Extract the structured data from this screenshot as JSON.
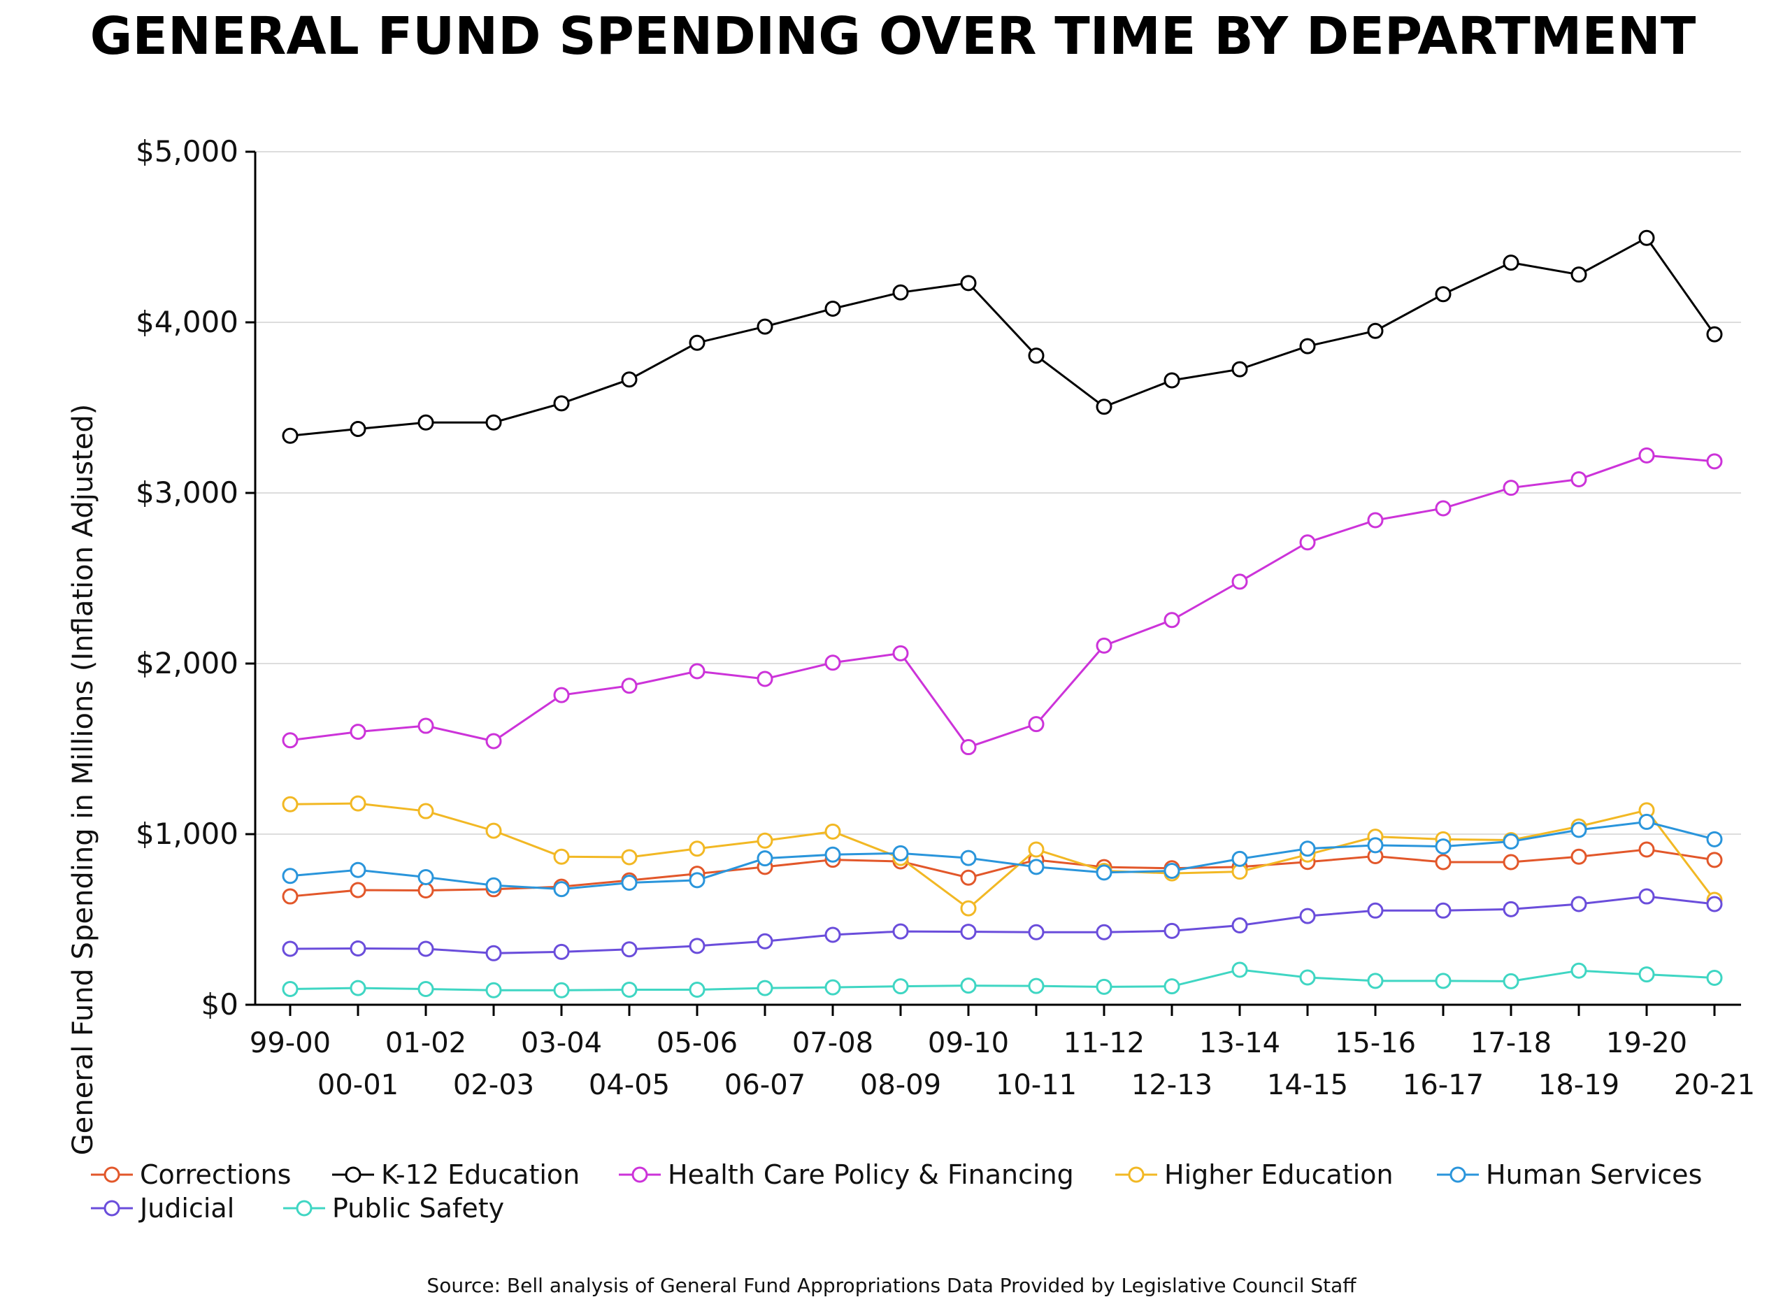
{
  "chart_data": {
    "type": "line",
    "title": "GENERAL FUND SPENDING OVER TIME BY DEPARTMENT",
    "ylabel": "General Fund Spending in Millions (Inflation Adjusted)",
    "xlabel": "",
    "ylim": [
      0,
      5000
    ],
    "yticks": [
      0,
      1000,
      2000,
      3000,
      4000,
      5000
    ],
    "ytick_labels": [
      "$0",
      "$1,000",
      "$2,000",
      "$3,000",
      "$4,000",
      "$5,000"
    ],
    "grid": "horizontal",
    "legend": "bottom",
    "categories": [
      "99-00",
      "00-01",
      "01-02",
      "02-03",
      "03-04",
      "04-05",
      "05-06",
      "06-07",
      "07-08",
      "08-09",
      "09-10",
      "10-11",
      "11-12",
      "12-13",
      "13-14",
      "14-15",
      "15-16",
      "16-17",
      "17-18",
      "18-19",
      "19-20",
      "20-21"
    ],
    "series": [
      {
        "name": "Corrections",
        "color": "#e2572a",
        "values": [
          635,
          672,
          670,
          677,
          692,
          729,
          768,
          808,
          850,
          840,
          745,
          849,
          807,
          800,
          808,
          837,
          871,
          836,
          836,
          868,
          910,
          849
        ]
      },
      {
        "name": "K-12 Education",
        "color": "#000000",
        "values": [
          3335,
          3375,
          3413,
          3413,
          3525,
          3665,
          3880,
          3975,
          4080,
          4175,
          4230,
          3805,
          3505,
          3660,
          3725,
          3860,
          3950,
          4165,
          4350,
          4280,
          4495,
          3930
        ]
      },
      {
        "name": "Health Care Policy & Financing",
        "color": "#cc33d9",
        "values": [
          1550,
          1600,
          1635,
          1545,
          1815,
          1870,
          1955,
          1910,
          2005,
          2060,
          1510,
          1645,
          2105,
          2255,
          2480,
          2710,
          2840,
          2910,
          3030,
          3080,
          3220,
          3185
        ]
      },
      {
        "name": "Higher Education",
        "color": "#f2b824",
        "values": [
          1175,
          1180,
          1135,
          1020,
          868,
          865,
          915,
          962,
          1015,
          860,
          565,
          910,
          785,
          770,
          780,
          880,
          985,
          970,
          965,
          1045,
          1140,
          615
        ]
      },
      {
        "name": "Human Services",
        "color": "#2a95db",
        "values": [
          755,
          790,
          748,
          700,
          678,
          715,
          730,
          858,
          880,
          888,
          860,
          808,
          775,
          785,
          855,
          915,
          935,
          928,
          957,
          1025,
          1072,
          970
        ]
      },
      {
        "name": "Judicial",
        "color": "#6a4ddb",
        "values": [
          328,
          330,
          328,
          302,
          310,
          325,
          345,
          372,
          410,
          430,
          428,
          425,
          425,
          433,
          465,
          520,
          552,
          552,
          560,
          590,
          635,
          590
        ]
      },
      {
        "name": "Public Safety",
        "color": "#3fd6c3",
        "values": [
          92,
          98,
          92,
          85,
          85,
          88,
          88,
          98,
          102,
          108,
          112,
          110,
          105,
          108,
          205,
          160,
          140,
          140,
          138,
          200,
          178,
          158
        ]
      }
    ],
    "source": "Source: Bell analysis of General Fund Appropriations Data Provided by Legislative Council Staff"
  }
}
